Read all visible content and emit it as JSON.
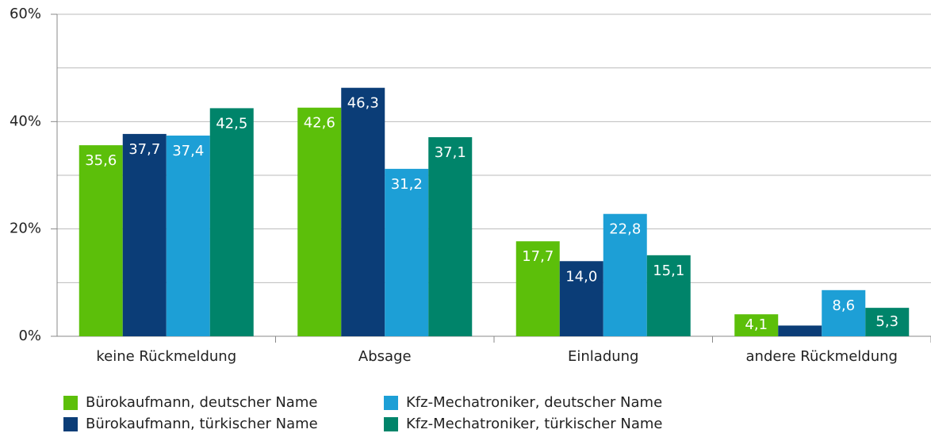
{
  "chart_data": {
    "type": "bar",
    "categories": [
      "keine Rückmeldung",
      "Absage",
      "Einladung",
      "andere Rückmeldung"
    ],
    "series": [
      {
        "name": "Bürokaufmann, deutscher Name",
        "color": "#5cbf0a",
        "values": [
          35.6,
          42.6,
          17.7,
          4.1
        ],
        "value_labels": [
          "35,6",
          "42,6",
          "17,7",
          "4,1"
        ]
      },
      {
        "name": "Bürokaufmann, türkischer Name",
        "color": "#0b3d77",
        "values": [
          37.7,
          46.3,
          14.0,
          2.0
        ],
        "value_labels": [
          "37,7",
          "46,3",
          "14,0",
          null
        ]
      },
      {
        "name": "Kfz-Mechatroniker, deutscher Name",
        "color": "#1d9fd6",
        "values": [
          37.4,
          31.2,
          22.8,
          8.6
        ],
        "value_labels": [
          "37,4",
          "31,2",
          "22,8",
          "8,6"
        ]
      },
      {
        "name": "Kfz-Mechatroniker, türkischer Name",
        "color": "#00846a",
        "values": [
          42.5,
          37.1,
          15.1,
          5.3
        ],
        "value_labels": [
          "42,5",
          "37,1",
          "15,1",
          "5,3"
        ]
      }
    ],
    "ylim": [
      0,
      60
    ],
    "yticks": [
      {
        "value": 0,
        "label": "0%"
      },
      {
        "value": 20,
        "label": "20%"
      },
      {
        "value": 40,
        "label": "40%"
      },
      {
        "value": 60,
        "label": "60%"
      }
    ],
    "ygrid": [
      10,
      30,
      50
    ],
    "grid": true,
    "legend": "bottom"
  }
}
